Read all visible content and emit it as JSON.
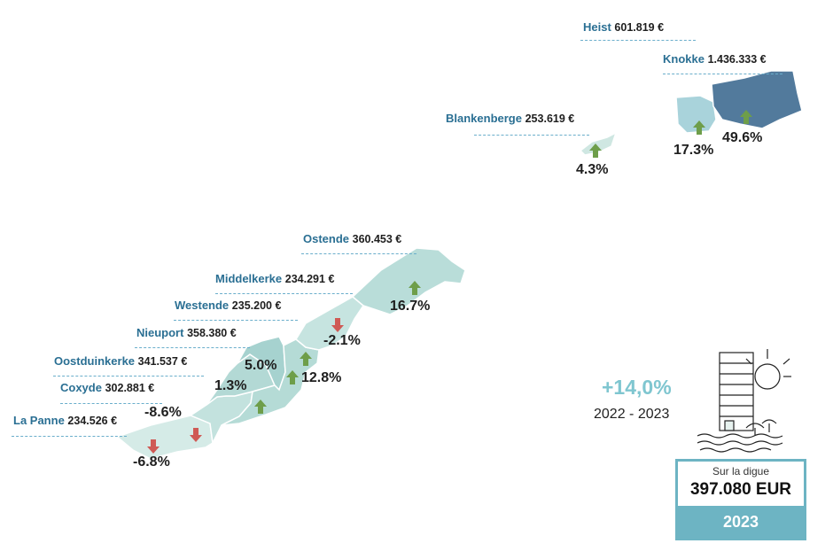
{
  "regions": [
    {
      "id": "heist",
      "name": "Heist",
      "price": "601.819 €",
      "change": null,
      "trend": null,
      "color": "#a9d3db"
    },
    {
      "id": "knokke",
      "name": "Knokke",
      "price": "1.436.333 €",
      "change": "49.6%",
      "trend": "up",
      "color": "#527a9c"
    },
    {
      "id": "knokke-heist-west",
      "name": "",
      "price": "",
      "change": "17.3%",
      "trend": "up",
      "color": "#a9d3db"
    },
    {
      "id": "blankenberge",
      "name": "Blankenberge",
      "price": "253.619 €",
      "change": "4.3%",
      "trend": "up",
      "color": "#cfe7e2"
    },
    {
      "id": "ostende",
      "name": "Ostende",
      "price": "360.453 €",
      "change": "16.7%",
      "trend": "up",
      "color": "#b9ddd9"
    },
    {
      "id": "middelkerke",
      "name": "Middelkerke",
      "price": "234.291 €",
      "change": "-2.1%",
      "trend": "down",
      "color": "#c6e4e0"
    },
    {
      "id": "westende",
      "name": "Westende",
      "price": "235.200 €",
      "change": "12.8%",
      "trend": "up",
      "color": "#b5dbd6"
    },
    {
      "id": "nieuport",
      "name": "Nieuport",
      "price": "358.380 €",
      "change": "5.0%",
      "trend": "up",
      "color": "#a6d2cf"
    },
    {
      "id": "oostduinkerke",
      "name": "Oostduinkerke",
      "price": "341.537 €",
      "change": "1.3%",
      "trend": "up",
      "color": "#b3d9d5"
    },
    {
      "id": "coxyde",
      "name": "Coxyde",
      "price": "302.881 €",
      "change": "-8.6%",
      "trend": "down",
      "color": "#c3e2de"
    },
    {
      "id": "la-panne",
      "name": "La Panne",
      "price": "234.526 €",
      "change": "-6.8%",
      "trend": "down",
      "color": "#d5ebe7"
    }
  ],
  "summary": {
    "change": "+14,0%",
    "period": "2022 -  2023",
    "box_label": "Sur la digue",
    "box_value": "397.080 EUR",
    "box_year": "2023"
  },
  "colors": {
    "up_arrow": "#6e9e4a",
    "down_arrow": "#cf5a55",
    "label_name": "#2a6f93",
    "accent": "#6db4c3"
  },
  "icons": [
    "building-icon",
    "sun-icon",
    "umbrella-icon",
    "wave-icon"
  ]
}
